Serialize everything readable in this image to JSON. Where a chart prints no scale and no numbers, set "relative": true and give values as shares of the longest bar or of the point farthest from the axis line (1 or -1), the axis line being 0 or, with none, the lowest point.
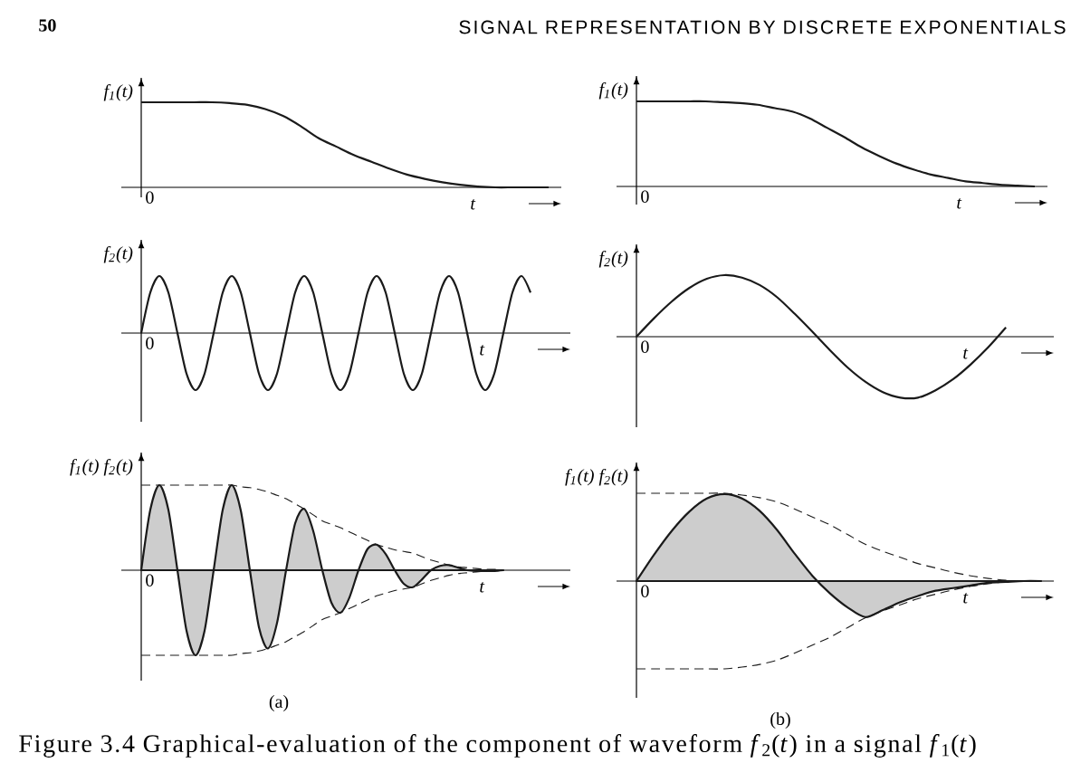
{
  "chart_data": [
    {
      "type": "line",
      "relative": true,
      "xlabel": "t",
      "ylabel": "f$_{1}$(t)",
      "categories": [
        null,
        null,
        null,
        null,
        null,
        null,
        null,
        null,
        null,
        null,
        null,
        null,
        null,
        null,
        null,
        null,
        null,
        null,
        null,
        null,
        null,
        null,
        null,
        null
      ],
      "series": [
        {
          "color": "#1a1a1a",
          "values": [
            1,
            1,
            1,
            1,
            1,
            0.99,
            0.97,
            0.92,
            0.84,
            0.72,
            0.58,
            0.48,
            0.38,
            0.3,
            0.22,
            0.15,
            0.1,
            0.06,
            0.03,
            0.01,
            0,
            0,
            0,
            0
          ]
        }
      ],
      "annotations": [
        "0",
        "50",
        "SIGNAL REPRESENTATION BY DISCRETE EXPONENTIALS"
      ]
    },
    {
      "type": "line",
      "relative": true,
      "xlabel": "t",
      "ylabel": "f$_{1}$(t)",
      "categories": [
        null,
        null,
        null,
        null,
        null,
        null,
        null,
        null,
        null,
        null,
        null,
        null,
        null,
        null,
        null,
        null,
        null,
        null,
        null,
        null,
        null,
        null,
        null,
        null
      ],
      "series": [
        {
          "color": "#1a1a1a",
          "values": [
            1,
            1,
            1,
            1,
            1,
            0.99,
            0.98,
            0.96,
            0.92,
            0.88,
            0.8,
            0.69,
            0.58,
            0.46,
            0.36,
            0.27,
            0.2,
            0.14,
            0.1,
            0.06,
            0.04,
            0.02,
            0.01,
            0
          ]
        }
      ],
      "annotations": [
        "0"
      ]
    },
    {
      "type": "line",
      "relative": true,
      "xlabel": "t",
      "ylabel": "f$_{2}$(t)",
      "categories": [
        null,
        null,
        null,
        null,
        null,
        null,
        null,
        null,
        null,
        null,
        null,
        null,
        null,
        null,
        null,
        null,
        null,
        null,
        null,
        null,
        null,
        null,
        null,
        null,
        null,
        null,
        null,
        null,
        null,
        null,
        null,
        null,
        null,
        null,
        null,
        null,
        null,
        null,
        null,
        null,
        null,
        null,
        null,
        null,
        null,
        null,
        null
      ],
      "series": [
        {
          "color": "#1a1a1a",
          "values": [
            0,
            0.71,
            1,
            0.71,
            0,
            -0.71,
            -1,
            -0.71,
            0,
            0.71,
            1,
            0.71,
            0,
            -0.71,
            -1,
            -0.71,
            0,
            0.71,
            1,
            0.71,
            0,
            -0.71,
            -1,
            -0.71,
            0,
            0.71,
            1,
            0.71,
            0,
            -0.71,
            -1,
            -0.71,
            0,
            0.71,
            1,
            0.71,
            0,
            -0.71,
            -1,
            -0.71,
            0,
            0.71,
            1,
            0.71,
            null,
            null,
            null
          ]
        }
      ],
      "annotations": [
        "0"
      ]
    },
    {
      "type": "line",
      "relative": true,
      "xlabel": "t",
      "ylabel": "f$_{2}$(t)",
      "categories": [
        null,
        null,
        null,
        null,
        null,
        null,
        null,
        null,
        null,
        null,
        null,
        null,
        null,
        null,
        null,
        null,
        null,
        null,
        null,
        null,
        null,
        null,
        null,
        null
      ],
      "series": [
        {
          "color": "#1a1a1a",
          "values": [
            0,
            0.3,
            0.57,
            0.79,
            0.94,
            1,
            0.96,
            0.84,
            0.64,
            0.37,
            0.08,
            -0.22,
            -0.5,
            -0.73,
            -0.9,
            -0.99,
            -0.99,
            -0.87,
            -0.69,
            -0.45,
            -0.17,
            0.15,
            null,
            null
          ]
        }
      ],
      "annotations": [
        "0"
      ]
    },
    {
      "type": "line",
      "relative": true,
      "xlabel": "t",
      "ylabel": "f$_{1}$(t) f$_{2}$(t)",
      "categories": [
        null,
        null,
        null,
        null,
        null,
        null,
        null,
        null,
        null,
        null,
        null,
        null,
        null,
        null,
        null,
        null,
        null,
        null,
        null,
        null,
        null,
        null,
        null,
        null,
        null,
        null,
        null,
        null,
        null,
        null,
        null,
        null,
        null,
        null,
        null,
        null,
        null,
        null,
        null,
        null,
        null,
        null,
        null,
        null,
        null,
        null,
        null
      ],
      "series": [
        {
          "type": "area",
          "color": "#1a1a1a",
          "values": [
            0,
            0.71,
            1,
            0.71,
            0,
            -0.71,
            -1,
            -0.71,
            0,
            0.71,
            1,
            0.7,
            0,
            -0.67,
            -0.92,
            -0.62,
            0,
            0.55,
            0.72,
            0.46,
            0,
            -0.38,
            -0.5,
            -0.32,
            0,
            0.25,
            0.3,
            0.19,
            0,
            -0.16,
            -0.2,
            -0.11,
            0,
            0.05,
            0.06,
            0.03,
            0,
            -0.01,
            -0.01,
            -0.01,
            0,
            null,
            null,
            null,
            null,
            null,
            null
          ]
        },
        {
          "color": "#1a1a1a",
          "line_style": "dashed",
          "values": [
            1,
            1,
            1,
            1,
            1,
            1,
            1,
            1,
            1,
            1,
            1,
            0.98,
            0.97,
            0.95,
            0.92,
            0.88,
            0.84,
            0.78,
            0.72,
            0.65,
            0.58,
            0.54,
            0.5,
            0.45,
            0.4,
            0.35,
            0.3,
            0.27,
            0.24,
            0.22,
            0.2,
            0.16,
            0.12,
            0.09,
            0.06,
            0.04,
            0.03,
            0.02,
            0.01,
            0.01,
            0,
            null,
            null,
            null,
            null,
            null,
            null
          ]
        },
        {
          "color": "#1a1a1a",
          "line_style": "dashed",
          "values": [
            -1,
            -1,
            -1,
            -1,
            -1,
            -1,
            -1,
            -1,
            -1,
            -1,
            -1,
            -0.98,
            -0.97,
            -0.95,
            -0.92,
            -0.88,
            -0.84,
            -0.78,
            -0.72,
            -0.65,
            -0.58,
            -0.54,
            -0.5,
            -0.45,
            -0.4,
            -0.35,
            -0.3,
            -0.27,
            -0.24,
            -0.22,
            -0.2,
            -0.16,
            -0.12,
            -0.09,
            -0.06,
            -0.04,
            -0.03,
            -0.02,
            -0.01,
            -0.01,
            0,
            null,
            null,
            null,
            null,
            null,
            null
          ]
        }
      ],
      "annotations": [
        "0",
        "(a)",
        "Figure 3.4  Graphical-evaluation of the component of waveform *f*$_{2}$(*t*) in a signal *f*$_{1}$(*t*)"
      ]
    },
    {
      "type": "line",
      "relative": true,
      "xlabel": "t",
      "ylabel": "f$_{1}$(t) f$_{2}$(t)",
      "categories": [
        null,
        null,
        null,
        null,
        null,
        null,
        null,
        null,
        null,
        null,
        null,
        null,
        null,
        null,
        null,
        null,
        null,
        null,
        null,
        null,
        null,
        null,
        null,
        null
      ],
      "series": [
        {
          "type": "area",
          "color": "#1a1a1a",
          "values": [
            0,
            0.3,
            0.57,
            0.79,
            0.94,
            0.99,
            0.94,
            0.8,
            0.58,
            0.31,
            0.06,
            -0.14,
            -0.3,
            -0.41,
            -0.33,
            -0.24,
            -0.17,
            -0.11,
            -0.08,
            -0.05,
            -0.02,
            -0.01,
            0,
            0
          ]
        },
        {
          "color": "#1a1a1a",
          "line_style": "dashed",
          "values": [
            1,
            1,
            1,
            1,
            1,
            1,
            0.98,
            0.95,
            0.9,
            0.82,
            0.73,
            0.64,
            0.53,
            0.42,
            0.34,
            0.27,
            0.2,
            0.15,
            0.1,
            0.06,
            0.03,
            0.01,
            0,
            0
          ]
        },
        {
          "color": "#1a1a1a",
          "line_style": "dashed",
          "values": [
            -1,
            -1,
            -1,
            -1,
            -1,
            -1,
            -0.98,
            -0.95,
            -0.9,
            -0.82,
            -0.73,
            -0.64,
            -0.53,
            -0.42,
            -0.34,
            -0.27,
            -0.2,
            -0.15,
            -0.1,
            -0.06,
            -0.03,
            -0.01,
            0,
            0
          ]
        }
      ],
      "annotations": [
        "0",
        "(b)"
      ]
    }
  ]
}
